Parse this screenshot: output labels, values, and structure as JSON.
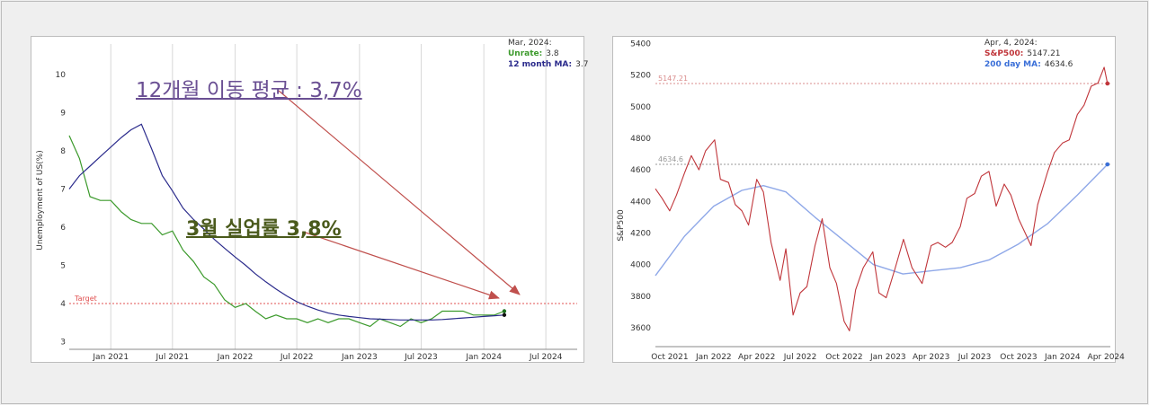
{
  "chart_data": [
    {
      "type": "line",
      "ylabel": "Unemployment of US(%)",
      "ylim": [
        2.8,
        10.8
      ],
      "xlim": [
        "2020-09",
        "2024-10"
      ],
      "y_ticks": [
        "3",
        "4",
        "5",
        "6",
        "7",
        "8",
        "9",
        "10"
      ],
      "x_ticks": [
        "Jan 2021",
        "Jul 2021",
        "Jan 2022",
        "Jul 2022",
        "Jan 2023",
        "Jul 2023",
        "Jan 2024",
        "Jul 2024"
      ],
      "x_tick_dates": [
        "2021-01",
        "2021-07",
        "2022-01",
        "2022-07",
        "2023-01",
        "2023-07",
        "2024-01",
        "2024-07"
      ],
      "grid": "vertical",
      "target": {
        "label": "Target",
        "value": 4.0,
        "color": "#e05050"
      },
      "legend": {
        "date": "Mar, 2024:",
        "unrate_label": "Unrate:",
        "unrate_value": "3.8",
        "ma_label": "12 month MA:",
        "ma_value": "3.7"
      },
      "annotations": {
        "ma": {
          "text": "12개월 이동 평균 : 3,7%",
          "color": "#6a4f93"
        },
        "unrate": {
          "text": "3월 실업률 3,8%",
          "color": "#4a5a1c"
        },
        "arrow_color": "#c0504d"
      },
      "series": [
        {
          "name": "Unrate",
          "color": "#3c9a2c",
          "x": [
            "2020-09",
            "2020-10",
            "2020-11",
            "2020-12",
            "2021-01",
            "2021-02",
            "2021-03",
            "2021-04",
            "2021-05",
            "2021-06",
            "2021-07",
            "2021-08",
            "2021-09",
            "2021-10",
            "2021-11",
            "2021-12",
            "2022-01",
            "2022-02",
            "2022-03",
            "2022-04",
            "2022-05",
            "2022-06",
            "2022-07",
            "2022-08",
            "2022-09",
            "2022-10",
            "2022-11",
            "2022-12",
            "2023-01",
            "2023-02",
            "2023-03",
            "2023-04",
            "2023-05",
            "2023-06",
            "2023-07",
            "2023-08",
            "2023-09",
            "2023-10",
            "2023-11",
            "2023-12",
            "2024-01",
            "2024-02",
            "2024-03"
          ],
          "values": [
            8.4,
            7.8,
            6.8,
            6.7,
            6.7,
            6.4,
            6.2,
            6.1,
            6.1,
            5.8,
            5.9,
            5.4,
            5.1,
            4.7,
            4.5,
            4.1,
            3.9,
            4.0,
            3.8,
            3.6,
            3.7,
            3.6,
            3.6,
            3.5,
            3.6,
            3.5,
            3.6,
            3.6,
            3.5,
            3.4,
            3.6,
            3.5,
            3.4,
            3.6,
            3.5,
            3.6,
            3.8,
            3.8,
            3.8,
            3.7,
            3.7,
            3.7,
            3.8
          ]
        },
        {
          "name": "12 month MA",
          "color": "#2b2b8c",
          "x": [
            "2020-09",
            "2020-10",
            "2020-11",
            "2020-12",
            "2021-01",
            "2021-02",
            "2021-03",
            "2021-04",
            "2021-05",
            "2021-06",
            "2021-07",
            "2021-08",
            "2021-09",
            "2021-10",
            "2021-11",
            "2021-12",
            "2022-01",
            "2022-02",
            "2022-03",
            "2022-04",
            "2022-05",
            "2022-06",
            "2022-07",
            "2022-08",
            "2022-09",
            "2022-10",
            "2022-11",
            "2022-12",
            "2023-01",
            "2023-02",
            "2023-03",
            "2023-04",
            "2023-05",
            "2023-06",
            "2023-07",
            "2023-08",
            "2023-09",
            "2023-10",
            "2023-11",
            "2023-12",
            "2024-01",
            "2024-02",
            "2024-03"
          ],
          "values": [
            7.0,
            7.35,
            7.6,
            7.85,
            8.1,
            8.35,
            8.55,
            8.7,
            8.05,
            7.35,
            6.95,
            6.5,
            6.2,
            5.95,
            5.68,
            5.45,
            5.22,
            5.0,
            4.78,
            4.57,
            4.38,
            4.2,
            4.05,
            3.93,
            3.83,
            3.75,
            3.7,
            3.66,
            3.63,
            3.6,
            3.59,
            3.58,
            3.57,
            3.57,
            3.57,
            3.57,
            3.58,
            3.6,
            3.62,
            3.64,
            3.66,
            3.68,
            3.7
          ]
        }
      ]
    },
    {
      "type": "line",
      "ylabel": "S&P500",
      "ylim": [
        3480,
        5420
      ],
      "xlim": [
        "2021-09-01",
        "2024-04-10"
      ],
      "y_ticks": [
        "3600",
        "3800",
        "4000",
        "4200",
        "4400",
        "4600",
        "4800",
        "5000",
        "5200",
        "5400"
      ],
      "x_ticks": [
        "Oct 2021",
        "Jan 2022",
        "Apr 2022",
        "Jul 2022",
        "Oct 2022",
        "Jan 2023",
        "Apr 2023",
        "Jul 2023",
        "Oct 2023",
        "Jan 2024",
        "Apr 2024"
      ],
      "x_tick_dates": [
        "2021-10-01",
        "2022-01-01",
        "2022-04-01",
        "2022-07-01",
        "2022-10-01",
        "2023-01-01",
        "2023-04-01",
        "2023-07-01",
        "2023-10-01",
        "2024-01-01",
        "2024-04-01"
      ],
      "grid": "none",
      "reference_lines": [
        {
          "label": "5147.21",
          "value": 5147.21,
          "color": "#d98c8c"
        },
        {
          "label": "4634.6",
          "value": 4634.6,
          "color": "#999999"
        }
      ],
      "legend": {
        "date": "Apr, 4, 2024:",
        "sp_label": "S&P500:",
        "sp_value": "5147.21",
        "ma_label": "200 day MA:",
        "ma_value": "4634.6"
      },
      "series": [
        {
          "name": "S&P500",
          "color": "#c0353a",
          "x": [
            "2021-09-01",
            "2021-09-15",
            "2021-10-01",
            "2021-10-15",
            "2021-11-01",
            "2021-11-15",
            "2021-12-01",
            "2021-12-15",
            "2022-01-03",
            "2022-01-15",
            "2022-02-01",
            "2022-02-15",
            "2022-03-01",
            "2022-03-15",
            "2022-04-01",
            "2022-04-15",
            "2022-05-01",
            "2022-05-20",
            "2022-06-01",
            "2022-06-16",
            "2022-07-01",
            "2022-07-15",
            "2022-08-01",
            "2022-08-16",
            "2022-09-01",
            "2022-09-15",
            "2022-10-01",
            "2022-10-12",
            "2022-10-25",
            "2022-11-10",
            "2022-11-30",
            "2022-12-13",
            "2022-12-28",
            "2023-01-15",
            "2023-02-02",
            "2023-02-20",
            "2023-03-13",
            "2023-04-01",
            "2023-04-15",
            "2023-05-01",
            "2023-05-15",
            "2023-06-01",
            "2023-06-15",
            "2023-07-01",
            "2023-07-15",
            "2023-07-31",
            "2023-08-15",
            "2023-09-01",
            "2023-09-15",
            "2023-10-01",
            "2023-10-27",
            "2023-11-10",
            "2023-12-01",
            "2023-12-15",
            "2024-01-01",
            "2024-01-15",
            "2024-02-01",
            "2024-02-15",
            "2024-03-01",
            "2024-03-15",
            "2024-03-28",
            "2024-04-04"
          ],
          "values": [
            4480,
            4420,
            4340,
            4440,
            4580,
            4690,
            4600,
            4720,
            4790,
            4540,
            4520,
            4380,
            4340,
            4250,
            4540,
            4460,
            4140,
            3900,
            4100,
            3680,
            3820,
            3860,
            4120,
            4290,
            3980,
            3880,
            3640,
            3580,
            3840,
            3980,
            4080,
            3820,
            3790,
            3970,
            4160,
            3980,
            3880,
            4120,
            4140,
            4110,
            4140,
            4240,
            4420,
            4450,
            4560,
            4590,
            4370,
            4510,
            4440,
            4290,
            4120,
            4380,
            4590,
            4710,
            4770,
            4790,
            4950,
            5010,
            5130,
            5150,
            5250,
            5147.21
          ]
        },
        {
          "name": "200 day MA",
          "color": "#8fa8e8",
          "x": [
            "2021-09-01",
            "2021-11-01",
            "2022-01-01",
            "2022-03-01",
            "2022-04-15",
            "2022-06-01",
            "2022-08-01",
            "2022-10-01",
            "2022-12-01",
            "2023-02-01",
            "2023-04-01",
            "2023-06-01",
            "2023-08-01",
            "2023-10-01",
            "2023-12-01",
            "2024-02-01",
            "2024-04-04"
          ],
          "values": [
            3930,
            4180,
            4370,
            4470,
            4500,
            4460,
            4300,
            4150,
            4000,
            3940,
            3960,
            3980,
            4030,
            4130,
            4260,
            4440,
            4634.6
          ]
        }
      ]
    }
  ]
}
